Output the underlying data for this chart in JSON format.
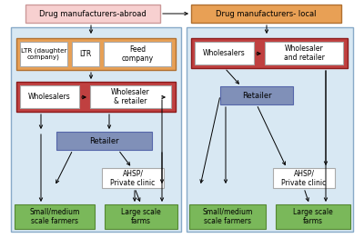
{
  "bg_color": "#ffffff",
  "colors": {
    "drug_abroad": "#f7d0d0",
    "drug_local": "#e8a055",
    "ltr_group": "#e8a055",
    "wholesaler_group": "#c04040",
    "retailer": "#8090b8",
    "ahsp": "#ffffff",
    "green": "#7ab85a",
    "panel": "#d8e8f3",
    "white": "#ffffff"
  },
  "labels": {
    "drug_abroad": "Drug manufacturers-abroad",
    "drug_local": "Drug manufacturers- local",
    "ltr_daughter": "LTR (daughter\ncompany)",
    "ltr": "LTR",
    "feed_company": "Feed\ncompany",
    "wholesalers_l": "Wholesalers",
    "wholesaler_retailer_l": "Wholesaler\n& retailer",
    "retailer_l": "Retailer",
    "ahsp_l": "AHSP/\nPrivate clinic",
    "small_med_l": "Small/medium\nscale farmers",
    "large_scale_l": "Large scale\nfarms",
    "wholesalers_r": "Wholesalers",
    "wholesaler_retailer_r": "Wholesaler\nand retailer",
    "retailer_r": "Retailer",
    "ahsp_r": "AHSP/\nPrivate clinic",
    "small_med_r": "Small/medium\nscale farmers",
    "large_scale_r": "Large scale\nfarms"
  }
}
